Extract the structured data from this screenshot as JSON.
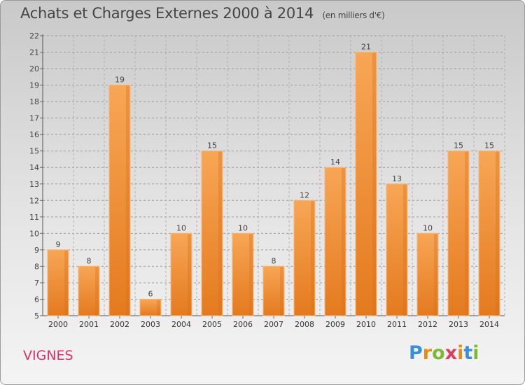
{
  "header": {
    "title": "Achats et Charges Externes 2000 à 2014",
    "subtitle": "(en milliers d'€)"
  },
  "footer": {
    "commune": "VIGNES",
    "logo_letters": [
      "P",
      "r",
      "o",
      "x",
      "i",
      "t",
      "i"
    ],
    "logo_colors": [
      "#3b8fd6",
      "#e58a1b",
      "#7db832",
      "#e23a5e",
      "#e58a1b",
      "#3b8fd6",
      "#7db832"
    ]
  },
  "chart_data": {
    "type": "bar",
    "title": "Achats et Charges Externes 2000 à 2014",
    "subtitle": "(en milliers d'€)",
    "categories": [
      "2000",
      "2001",
      "2002",
      "2003",
      "2004",
      "2005",
      "2006",
      "2007",
      "2008",
      "2009",
      "2010",
      "2011",
      "2012",
      "2013",
      "2014"
    ],
    "values": [
      9,
      8,
      19,
      6,
      10,
      15,
      10,
      8,
      12,
      14,
      21,
      13,
      10,
      15,
      15
    ],
    "ylim": [
      5,
      22
    ],
    "yticks": [
      "5",
      "6",
      "7",
      "8",
      "9",
      "10",
      "11",
      "12",
      "13",
      "14",
      "15",
      "16",
      "17",
      "18",
      "19",
      "20",
      "21",
      "22"
    ],
    "grid": true,
    "bar_color": "#f2994a"
  }
}
